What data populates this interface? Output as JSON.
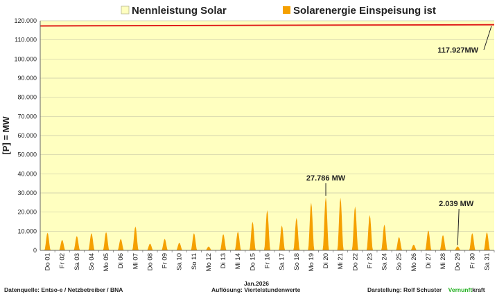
{
  "chart_data": {
    "type": "area",
    "legend": [
      {
        "name": "Nennleistung Solar",
        "color": "#ffffc0"
      },
      {
        "name": "Solarenergie Einspeisung ist",
        "color": "#f5a000"
      }
    ],
    "ylabel": "[P]  =  MW",
    "ylim": [
      0,
      120000
    ],
    "yticks": [
      0,
      10000,
      20000,
      30000,
      40000,
      50000,
      60000,
      70000,
      80000,
      90000,
      100000,
      110000,
      120000
    ],
    "ytick_labels": [
      "0",
      "10.000",
      "20.000",
      "30.000",
      "40.000",
      "50.000",
      "60.000",
      "70.000",
      "80.000",
      "90.000",
      "100.000",
      "110.000",
      "120.000"
    ],
    "xlabel": "Jan.2026",
    "x_labels": [
      "Do 01",
      "Fr 02",
      "Sa 03",
      "So 04",
      "Mo 05",
      "Di 06",
      "Mi 07",
      "Do 08",
      "Fr 09",
      "Sa 10",
      "So 11",
      "Mo 12",
      "Di 13",
      "Mi 14",
      "Do 15",
      "Fr 16",
      "Sa 17",
      "So 18",
      "Mo 19",
      "Di 20",
      "Mi 21",
      "Do 22",
      "Fr 23",
      "Sa 24",
      "So 25",
      "Mo 26",
      "Di 27",
      "Mi 28",
      "Do 29",
      "Fr 30",
      "Sa 31"
    ],
    "capacity_series": {
      "name": "Nennleistung Solar",
      "start": 117300,
      "end": 117927
    },
    "feed_in_series": {
      "name": "Solarenergie Einspeisung ist",
      "daily_peak_mw": [
        9200,
        5500,
        7500,
        9000,
        9600,
        6000,
        12500,
        3500,
        6000,
        4000,
        9000,
        2000,
        8500,
        9800,
        15000,
        21000,
        13000,
        17000,
        25000,
        27786,
        27500,
        23000,
        18500,
        13500,
        7000,
        3000,
        10500,
        8000,
        2039,
        9000,
        9500
      ]
    },
    "annotations": [
      {
        "label": "117.927MW",
        "day": 31,
        "value": 117927
      },
      {
        "label": "27.786 MW",
        "day": 20,
        "value": 27786
      },
      {
        "label": "2.039 MW",
        "day": 29,
        "value": 2039
      }
    ]
  },
  "footer": {
    "source": "Datenquelle:  Entso-e  / Netzbetreiber / BNA",
    "resolution": "Auflösung:  Viertelstundenwerte",
    "author": "Darstellung:  Rolf Schuster",
    "brand_a": "Vernunft",
    "brand_b": "kraft"
  },
  "colors": {
    "capacity_line": "#e0201c",
    "fill_yellow": "#ffffc0",
    "fill_orange": "#f5a000"
  }
}
